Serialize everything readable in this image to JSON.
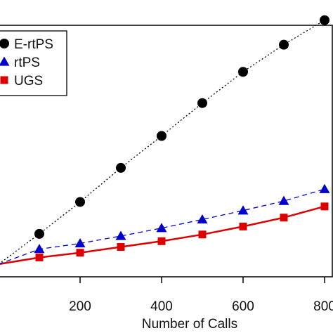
{
  "chart_data": {
    "type": "line",
    "title": "",
    "xlabel": "Number of Calls",
    "ylabel": "",
    "x": [
      0,
      100,
      200,
      300,
      400,
      500,
      600,
      700,
      800
    ],
    "x_ticks": [
      "200",
      "400",
      "600",
      "800"
    ],
    "x_tick_values": [
      200,
      400,
      600,
      800
    ],
    "xlim": [
      0,
      800
    ],
    "ylim": [
      0,
      1
    ],
    "grid": false,
    "legend_position": "top-left",
    "series": [
      {
        "name": "E-rtPS",
        "marker": "circle",
        "line_style": "dotted",
        "color": "#000000",
        "values": [
          0.0,
          0.095,
          0.195,
          0.302,
          0.402,
          0.505,
          0.603,
          0.688,
          0.765
        ]
      },
      {
        "name": "rtPS",
        "marker": "triangle",
        "line_style": "dashed",
        "color": "#0000cc",
        "values": [
          0.0,
          0.047,
          0.065,
          0.088,
          0.113,
          0.14,
          0.168,
          0.198,
          0.235
        ]
      },
      {
        "name": "UGS",
        "marker": "square",
        "line_style": "solid",
        "color": "#dd0000",
        "values": [
          0.0,
          0.021,
          0.036,
          0.054,
          0.072,
          0.093,
          0.118,
          0.146,
          0.181
        ]
      }
    ]
  }
}
